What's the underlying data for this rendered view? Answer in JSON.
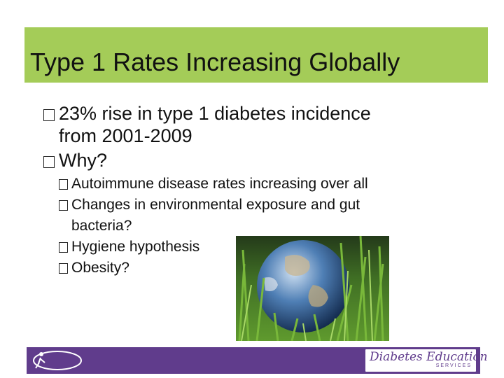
{
  "slide": {
    "title": "Type 1 Rates Increasing Globally",
    "bullets": [
      "23% rise in type 1 diabetes incidence from 2001-2009",
      "Why?"
    ],
    "sub_bullets": [
      "Autoimmune disease rates increasing over all",
      "Changes in environmental exposure and gut bacteria?",
      "Hygiene hypothesis",
      "Obesity?"
    ]
  },
  "footer": {
    "brand": "Diabetes Education",
    "brand_sub": "SERVICES"
  },
  "colors": {
    "title_bar": "#a4cc58",
    "footer": "#603c8c"
  },
  "icons": {
    "bullet": "square-bullet-icon",
    "left_logo": "runner-logo-icon",
    "photo": "earth-in-grass-photo"
  }
}
